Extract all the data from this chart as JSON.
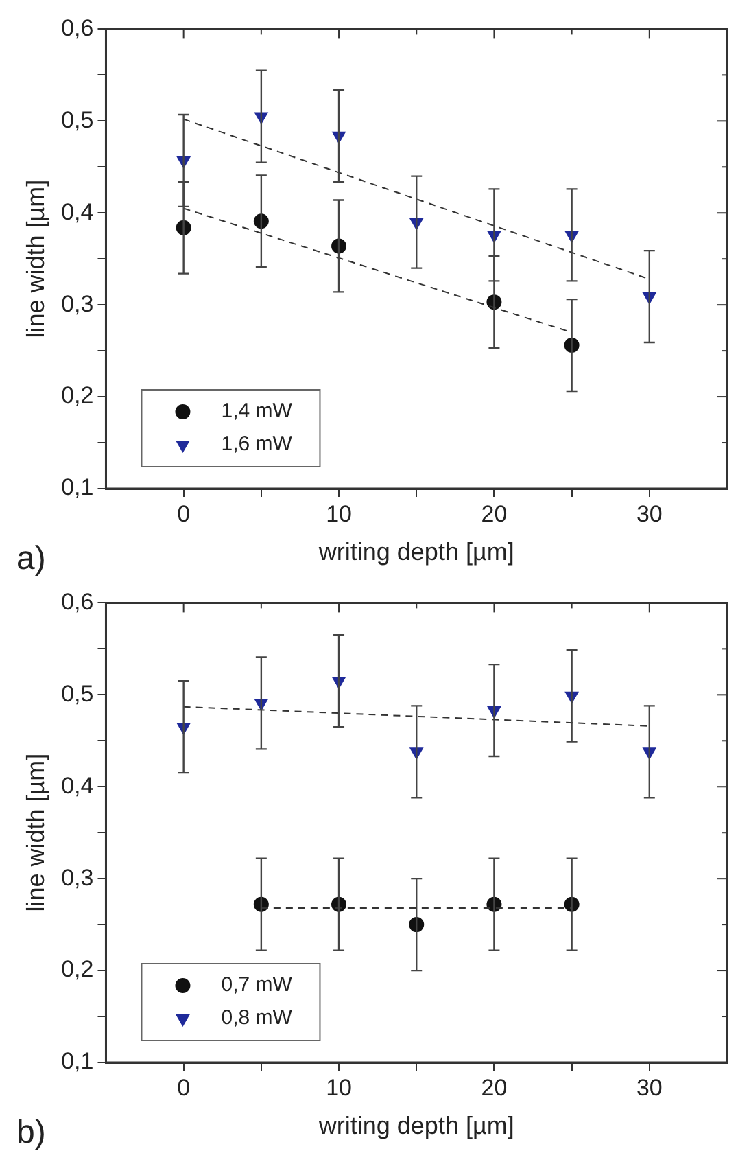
{
  "chart_data": [
    {
      "type": "scatter",
      "xlabel": "writing depth [µm]",
      "ylabel": "line width [µm]",
      "annotations": [
        "a)"
      ],
      "xlim": [
        -5,
        35
      ],
      "xticks": [
        0,
        {
          "value": 5,
          "label": null
        },
        10,
        {
          "value": 15,
          "label": null
        },
        20,
        {
          "value": 25,
          "label": null
        },
        30
      ],
      "ylim": [
        0.1,
        0.6
      ],
      "yticks": [
        {
          "value": 0.1,
          "label": "0,1"
        },
        {
          "value": 0.15,
          "label": null
        },
        {
          "value": 0.2,
          "label": "0,2"
        },
        {
          "value": 0.25,
          "label": null
        },
        {
          "value": 0.3,
          "label": "0,3"
        },
        {
          "value": 0.35,
          "label": null
        },
        {
          "value": 0.4,
          "label": "0,4"
        },
        {
          "value": 0.45,
          "label": null
        },
        {
          "value": 0.5,
          "label": "0,5"
        },
        {
          "value": 0.55,
          "label": null
        },
        {
          "value": 0.6,
          "label": "0,6"
        }
      ],
      "grid": false,
      "legend": "bottom left",
      "series": [
        {
          "type": "line",
          "color": "#333333",
          "line_style": "dashed",
          "marker": "none",
          "x": [
            0,
            25
          ],
          "values": [
            0.405,
            0.27
          ]
        },
        {
          "type": "line",
          "color": "#333333",
          "line_style": "dashed",
          "marker": "none",
          "x": [
            0,
            30
          ],
          "values": [
            0.502,
            0.328
          ]
        },
        {
          "name": "1,4 mW",
          "color": "#111111",
          "marker": "circle",
          "x": [
            0,
            5,
            10,
            20,
            25
          ],
          "values": [
            0.384,
            0.391,
            0.364,
            0.303,
            0.256
          ],
          "errors": [
            0.05,
            0.05,
            0.05,
            0.05,
            0.05
          ]
        },
        {
          "name": "1,6 mW",
          "color": "#1f2a9a",
          "marker": "triangle",
          "x": [
            0,
            5,
            10,
            15,
            20,
            25,
            30
          ],
          "values": [
            0.457,
            0.505,
            0.484,
            0.39,
            0.376,
            0.376,
            0.309
          ],
          "errors": [
            0.05,
            0.05,
            0.05,
            0.05,
            0.05,
            0.05,
            0.05
          ]
        }
      ]
    },
    {
      "type": "scatter",
      "xlabel": "writing depth [µm]",
      "ylabel": "line width [µm]",
      "annotations": [
        "b)"
      ],
      "xlim": [
        -5,
        35
      ],
      "xticks": [
        0,
        {
          "value": 5,
          "label": null
        },
        10,
        {
          "value": 15,
          "label": null
        },
        20,
        {
          "value": 25,
          "label": null
        },
        30
      ],
      "ylim": [
        0.1,
        0.6
      ],
      "yticks": [
        {
          "value": 0.1,
          "label": "0,1"
        },
        {
          "value": 0.15,
          "label": null
        },
        {
          "value": 0.2,
          "label": "0,2"
        },
        {
          "value": 0.25,
          "label": null
        },
        {
          "value": 0.3,
          "label": "0,3"
        },
        {
          "value": 0.35,
          "label": null
        },
        {
          "value": 0.4,
          "label": "0,4"
        },
        {
          "value": 0.45,
          "label": null
        },
        {
          "value": 0.5,
          "label": "0,5"
        },
        {
          "value": 0.55,
          "label": null
        },
        {
          "value": 0.6,
          "label": "0,6"
        }
      ],
      "grid": false,
      "legend": "bottom left",
      "series": [
        {
          "type": "line",
          "color": "#333333",
          "line_style": "dashed",
          "marker": "none",
          "x": [
            5,
            25
          ],
          "values": [
            0.268,
            0.268
          ]
        },
        {
          "type": "line",
          "color": "#333333",
          "line_style": "dashed",
          "marker": "none",
          "x": [
            0,
            30
          ],
          "values": [
            0.487,
            0.466
          ]
        },
        {
          "name": "0,7 mW",
          "color": "#111111",
          "marker": "circle",
          "x": [
            5,
            10,
            15,
            20,
            25
          ],
          "values": [
            0.272,
            0.272,
            0.25,
            0.272,
            0.272
          ],
          "errors": [
            0.05,
            0.05,
            0.05,
            0.05,
            0.05
          ]
        },
        {
          "name": "0,8 mW",
          "color": "#1f2a9a",
          "marker": "triangle",
          "x": [
            0,
            5,
            10,
            15,
            20,
            25,
            30
          ],
          "values": [
            0.465,
            0.491,
            0.515,
            0.438,
            0.483,
            0.499,
            0.438
          ],
          "errors": [
            0.05,
            0.05,
            0.05,
            0.05,
            0.05,
            0.05,
            0.05
          ]
        }
      ]
    }
  ]
}
